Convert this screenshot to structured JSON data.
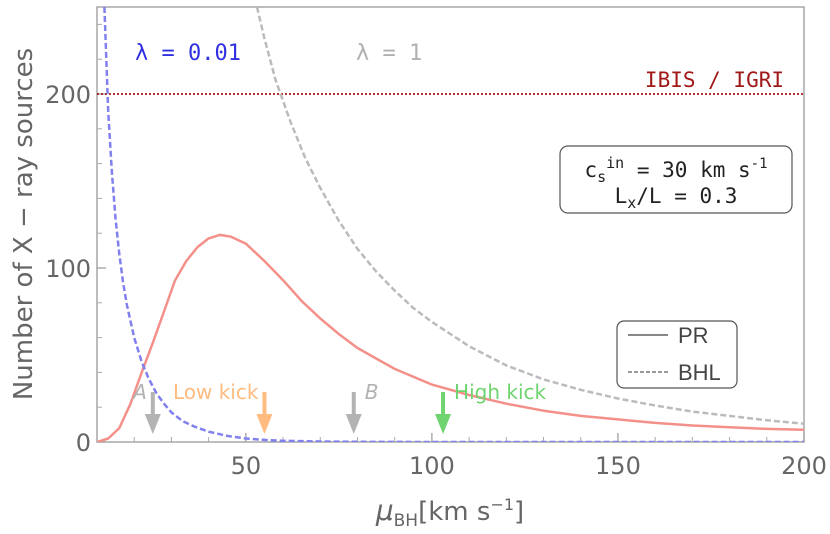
{
  "chart_data": {
    "type": "line",
    "xlabel": {
      "symbol": "μ",
      "subscript": "BH",
      "units": "[km s",
      "exp": "−1",
      "close": "]"
    },
    "ylabel": "Number of X − ray sources",
    "xlim": [
      10,
      200
    ],
    "ylim": [
      0,
      250
    ],
    "xticks": [
      50,
      100,
      150,
      200
    ],
    "yticks": [
      0,
      100,
      200
    ],
    "grid": false,
    "series": [
      {
        "name": "PR",
        "kind": "pr",
        "color": "#f4908a",
        "dash": "none",
        "x": [
          10,
          13,
          16,
          19,
          22,
          25,
          28,
          31,
          34,
          37,
          40,
          43,
          46,
          50,
          55,
          60,
          65,
          70,
          75,
          80,
          90,
          100,
          110,
          120,
          130,
          140,
          150,
          160,
          170,
          180,
          190,
          200
        ],
        "y": [
          0,
          2,
          8,
          22,
          40,
          57,
          75,
          93,
          104,
          112,
          117,
          119,
          118,
          114,
          104,
          93,
          81,
          71,
          62,
          54,
          42,
          33,
          27,
          22,
          18,
          15,
          13,
          11,
          9.5,
          8.5,
          7.5,
          7
        ]
      },
      {
        "name": "",
        "kind": "pr-lambda-0.01",
        "color": "#8080ee",
        "dash": "6,3",
        "x": [
          12,
          13,
          14,
          15,
          16,
          17,
          18,
          20,
          22,
          24,
          26,
          28,
          30,
          33,
          36,
          40,
          45,
          50,
          55,
          60,
          70,
          80,
          100,
          150,
          200
        ],
        "y": [
          250,
          190,
          155,
          128,
          108,
          92,
          79,
          60,
          46,
          36,
          28,
          22,
          17,
          12,
          9,
          6,
          3.5,
          2,
          1.2,
          0.7,
          0.3,
          0.1,
          0,
          0,
          0
        ]
      },
      {
        "name": "BHL",
        "kind": "bhl-lambda-1",
        "color": "#bbbbbb",
        "dash": "6,3",
        "x": [
          53,
          55,
          58,
          62,
          66,
          70,
          75,
          80,
          85,
          90,
          95,
          100,
          110,
          120,
          130,
          140,
          150,
          160,
          170,
          180,
          190,
          200
        ],
        "y": [
          250,
          232,
          208,
          184,
          163,
          146,
          127,
          111,
          98,
          87,
          77,
          69,
          55,
          44,
          36,
          30,
          25,
          21,
          17.5,
          15,
          12.5,
          10.5
        ]
      }
    ],
    "hline": {
      "y": 200,
      "label": "IBIS / IGRI",
      "color": "#a01818"
    },
    "lambda_labels": [
      {
        "text": "λ = 0.01",
        "color": "#3030e0"
      },
      {
        "text": "λ = 1",
        "color": "#b0b0b0"
      }
    ],
    "info_box": {
      "line1_prefix": "c",
      "line1_sub": "s",
      "line1_sup": "in",
      "line1_value": " = 30 km s",
      "line1_exp": "-1",
      "line2_prefix": "L",
      "line2_sub": "x",
      "line2_value": "/L = 0.3"
    },
    "legend": {
      "placement": "lower-right",
      "entries": [
        {
          "label": "PR",
          "style": "solid"
        },
        {
          "label": "BHL",
          "style": "dashed"
        }
      ]
    },
    "markers": [
      {
        "x": 25,
        "label": "A",
        "label_side": "left",
        "color": "#b3b3b3"
      },
      {
        "x": 55,
        "label": "Low kick",
        "label_side": "left",
        "color": "#ffbb80"
      },
      {
        "x": 79,
        "label": "B",
        "label_side": "right",
        "color": "#b3b3b3"
      },
      {
        "x": 103,
        "label": "High kick",
        "label_side": "right",
        "color": "#6fd46f"
      }
    ]
  }
}
